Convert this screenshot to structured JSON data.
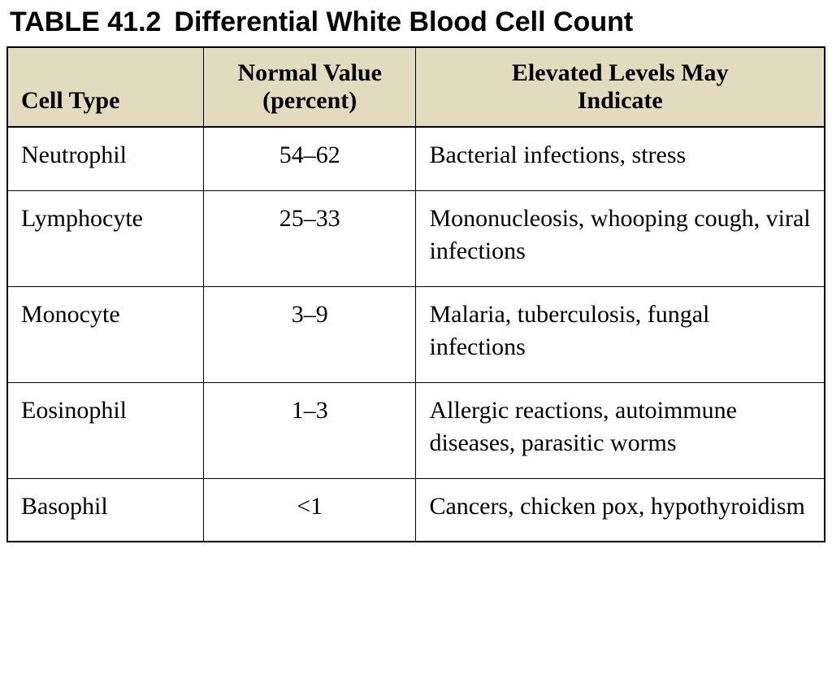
{
  "title": {
    "number": "TABLE 41.2",
    "text": "Differential White Blood Cell Count"
  },
  "table": {
    "type": "table",
    "header_background_color": "#e3dbbf",
    "border_color": "#000000",
    "text_color": "#000000",
    "header_font_family": "Georgia, serif",
    "body_font_family": "Georgia, serif",
    "header_fontsize_pt": 22,
    "body_fontsize_pt": 22,
    "title_fontsize_pt": 26,
    "column_widths_percent": [
      24,
      26,
      50
    ],
    "columns": [
      {
        "key": "cell_type",
        "label": "Cell Type",
        "align": "left"
      },
      {
        "key": "normal_value",
        "label": "Normal Value (percent)",
        "align": "center"
      },
      {
        "key": "elevated",
        "label": "Elevated Levels May Indicate",
        "align": "center"
      }
    ],
    "rows": [
      {
        "cell_type": "Neutrophil",
        "normal_value": "54–62",
        "elevated": "Bacterial infections, stress"
      },
      {
        "cell_type": "Lymphocyte",
        "normal_value": "25–33",
        "elevated": "Mononucleosis, whooping cough, viral infections"
      },
      {
        "cell_type": "Monocyte",
        "normal_value": "3–9",
        "elevated": "Malaria, tuberculosis, fungal infections"
      },
      {
        "cell_type": "Eosinophil",
        "normal_value": "1–3",
        "elevated": "Allergic reactions, autoimmune diseases, parasitic worms"
      },
      {
        "cell_type": "Basophil",
        "normal_value": "<1",
        "elevated": "Cancers, chicken pox, hypothyroidism"
      }
    ]
  }
}
